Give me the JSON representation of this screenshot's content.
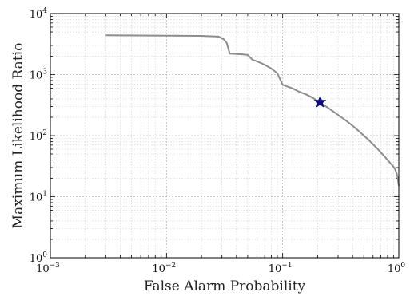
{
  "chart_data": {
    "type": "line",
    "xlabel": "False Alarm Probability",
    "ylabel": "Maximum Likelihood Ratio",
    "xscale": "log",
    "yscale": "log",
    "xlim": [
      0.001,
      1
    ],
    "ylim": [
      1,
      10000
    ],
    "grid": true,
    "x_ticks": [
      {
        "base": "10",
        "exp": "−3"
      },
      {
        "base": "10",
        "exp": "−2"
      },
      {
        "base": "10",
        "exp": "−1"
      },
      {
        "base": "10",
        "exp": "0"
      }
    ],
    "y_ticks": [
      {
        "base": "10",
        "exp": "0"
      },
      {
        "base": "10",
        "exp": "1"
      },
      {
        "base": "10",
        "exp": "2"
      },
      {
        "base": "10",
        "exp": "3"
      },
      {
        "base": "10",
        "exp": "4"
      }
    ],
    "series": [
      {
        "color": "#8c8c8c",
        "x": [
          0.003,
          0.02,
          0.028,
          0.031,
          0.033,
          0.034,
          0.035,
          0.045,
          0.05,
          0.052,
          0.055,
          0.06,
          0.07,
          0.08,
          0.09,
          0.1,
          0.12,
          0.14,
          0.16,
          0.18,
          0.2,
          0.22,
          0.25,
          0.28,
          0.32,
          0.36,
          0.4,
          0.45,
          0.5,
          0.55,
          0.6,
          0.65,
          0.7,
          0.75,
          0.8,
          0.85,
          0.9,
          0.93,
          0.96,
          0.98,
          1.0
        ],
        "y": [
          4400,
          4300,
          4200,
          3800,
          3300,
          2700,
          2200,
          2150,
          2100,
          1950,
          1750,
          1650,
          1450,
          1250,
          1050,
          680,
          600,
          520,
          470,
          420,
          370,
          330,
          280,
          240,
          200,
          170,
          145,
          120,
          100,
          85,
          72,
          62,
          53,
          46,
          40,
          35,
          31,
          28,
          24,
          20,
          15
        ]
      }
    ],
    "highlight_point": {
      "x": 0.21,
      "y": 355,
      "marker": "star",
      "color": "#0b0b8a"
    }
  }
}
